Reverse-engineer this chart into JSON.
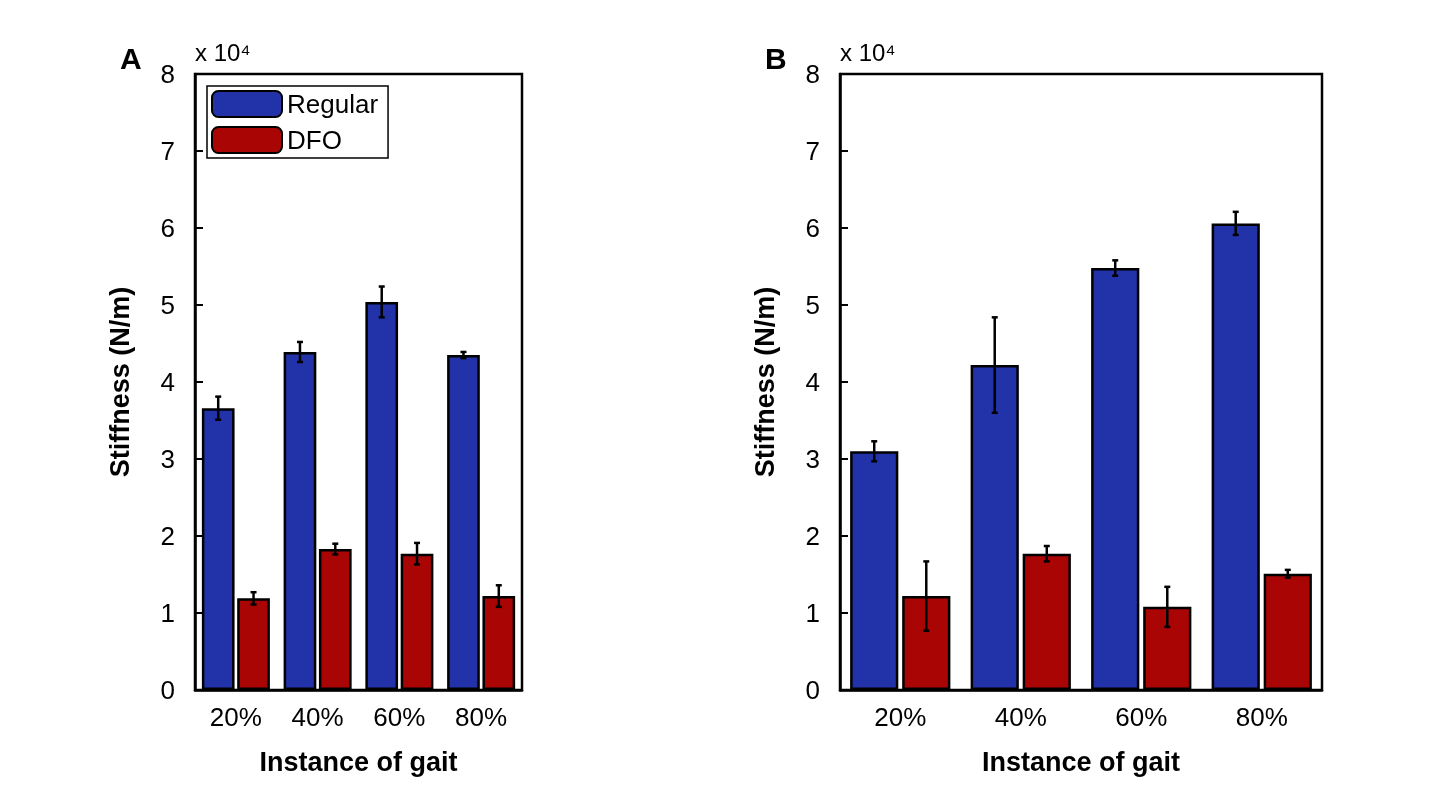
{
  "chart_data": [
    {
      "type": "bar",
      "title": "A",
      "xlabel": "Instance of gait",
      "ylabel": "Stiffness (N/m)",
      "annotations": [
        "x 10⁴"
      ],
      "categories": [
        "20%",
        "40%",
        "60%",
        "80%"
      ],
      "ylim": [
        0,
        8
      ],
      "yticks": [
        0,
        1,
        2,
        3,
        4,
        5,
        6,
        7,
        8
      ],
      "grid": false,
      "legend": "top left",
      "series": [
        {
          "name": "Regular",
          "color": "#2233aa",
          "values": [
            3.66,
            4.39,
            5.04,
            4.35
          ],
          "errors": [
            0.15,
            0.13,
            0.2,
            0.04
          ]
        },
        {
          "name": "DFO",
          "color": "#aa0505",
          "values": [
            1.19,
            1.83,
            1.77,
            1.22
          ],
          "errors": [
            0.08,
            0.07,
            0.14,
            0.14
          ]
        }
      ]
    },
    {
      "type": "bar",
      "title": "B",
      "xlabel": "Instance of gait",
      "ylabel": "Stiffness (N/m)",
      "annotations": [
        "x 10⁴"
      ],
      "categories": [
        "20%",
        "40%",
        "60%",
        "80%"
      ],
      "ylim": [
        0,
        8
      ],
      "yticks": [
        0,
        1,
        2,
        3,
        4,
        5,
        6,
        7,
        8
      ],
      "grid": false,
      "series": [
        {
          "color": "#2233aa",
          "values": [
            3.1,
            4.22,
            5.48,
            6.06
          ],
          "errors": [
            0.13,
            0.62,
            0.1,
            0.15
          ]
        },
        {
          "color": "#aa0505",
          "values": [
            1.22,
            1.77,
            1.08,
            1.51
          ],
          "errors": [
            0.45,
            0.1,
            0.26,
            0.05
          ]
        }
      ]
    }
  ]
}
